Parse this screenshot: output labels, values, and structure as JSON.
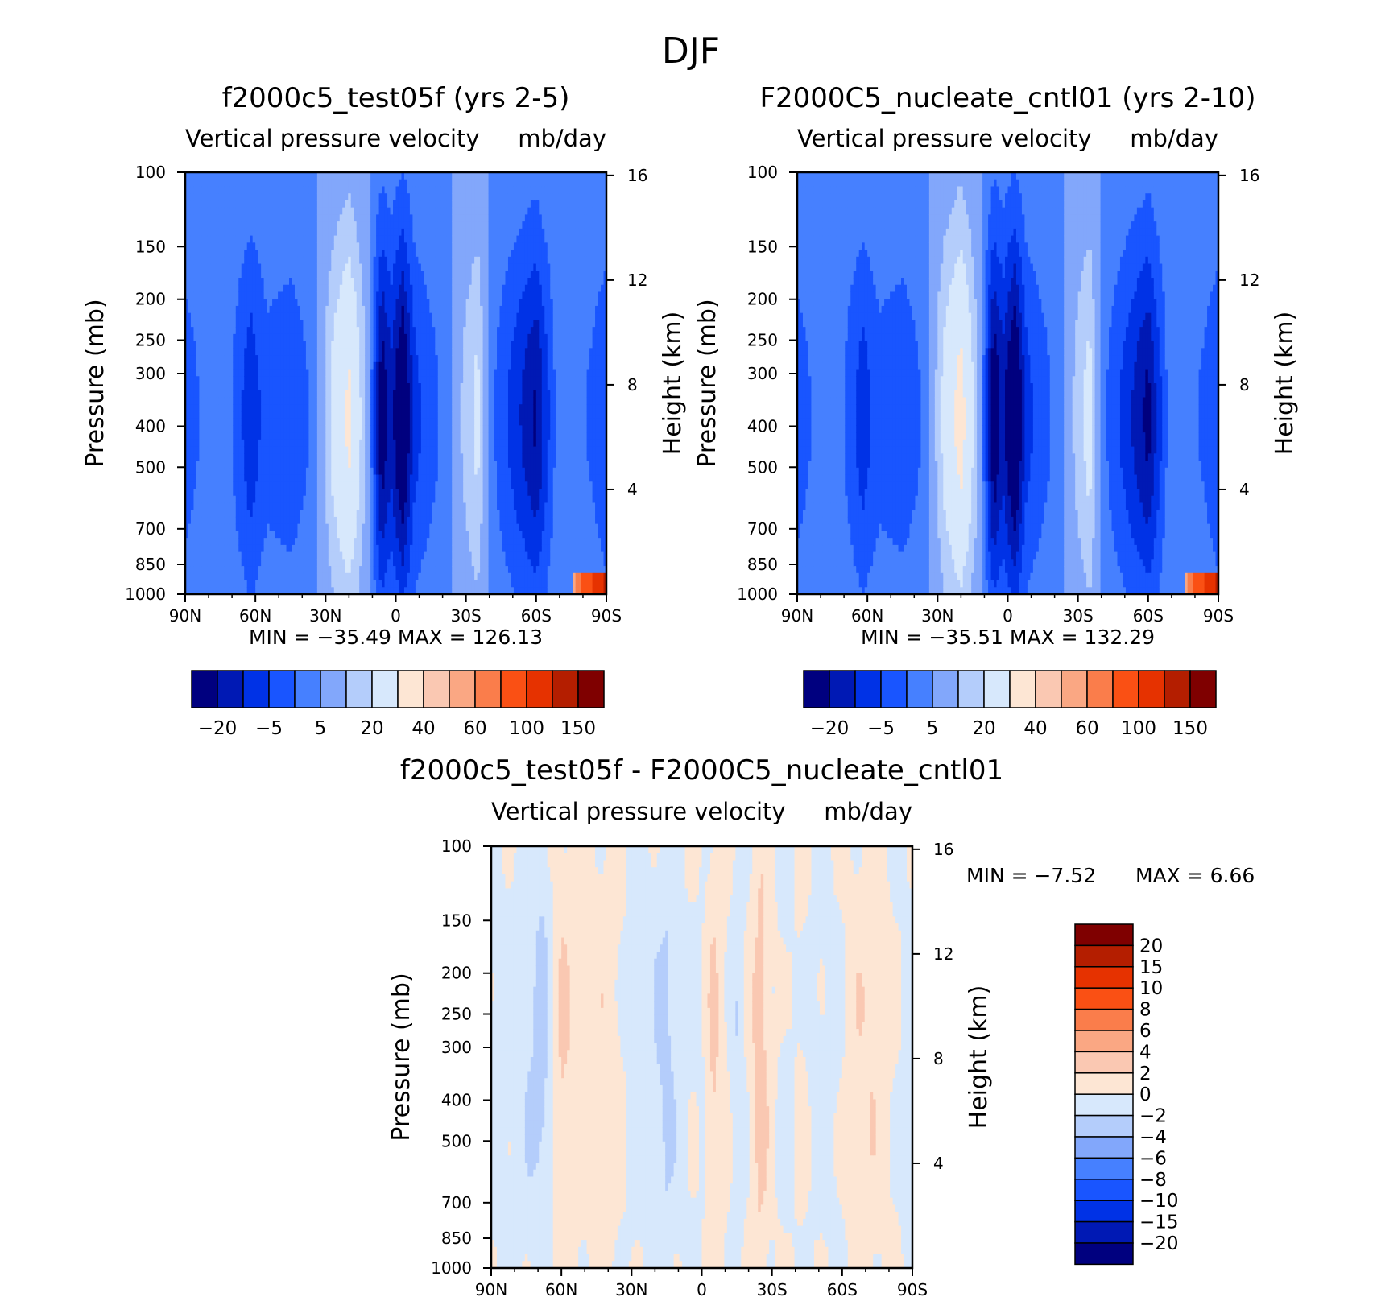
{
  "figure": {
    "title": "DJF"
  },
  "panels": [
    {
      "id": "p1",
      "title": "f2000c5_test05f (yrs 2-5)",
      "left_label": "Vertical pressure velocity",
      "right_label": "mb/day",
      "stats": {
        "min_label": "MIN",
        "min_value": "-35.49",
        "max_label": "MAX",
        "max_value": "126.13"
      }
    },
    {
      "id": "p2",
      "title": "F2000C5_nucleate_cntl01 (yrs 2-10)",
      "left_label": "Vertical pressure velocity",
      "right_label": "mb/day",
      "stats": {
        "min_label": "MIN",
        "min_value": "-35.51",
        "max_label": "MAX",
        "max_value": "132.29"
      }
    },
    {
      "id": "p3",
      "title": "f2000c5_test05f - F2000C5_nucleate_cntl01",
      "left_label": "Vertical pressure velocity",
      "right_label": "mb/day",
      "stats": {
        "min_label": "MIN",
        "min_value": "-7.52",
        "max_label": "MAX",
        "max_value": "6.66"
      }
    }
  ],
  "axes": {
    "ylabel": "Pressure (mb)",
    "y2label": "Height (km)",
    "x_ticks": [
      "90N",
      "60N",
      "30N",
      "0",
      "30S",
      "60S",
      "90S"
    ],
    "y_ticks": [
      "100",
      "150",
      "200",
      "250",
      "300",
      "400",
      "500",
      "700",
      "850",
      "1000"
    ],
    "y2_ticks": [
      "16",
      "12",
      "8",
      "4"
    ]
  },
  "colorbars": {
    "abs_labels": [
      "-20",
      "-5",
      "5",
      "20",
      "40",
      "60",
      "100",
      "150"
    ],
    "abs_colors": [
      "#00007f",
      "#0019b4",
      "#0032e6",
      "#1955ff",
      "#4680ff",
      "#82a7fb",
      "#b4cdfb",
      "#d7e8fc",
      "#fde6d4",
      "#fac8b2",
      "#faa783",
      "#fa7d4b",
      "#fa5014",
      "#e63200",
      "#b41e00",
      "#7f0000"
    ],
    "diff_labels": [
      "20",
      "15",
      "10",
      "8",
      "6",
      "4",
      "2",
      "0",
      "-2",
      "-4",
      "-6",
      "-8",
      "-10",
      "-15",
      "-20"
    ],
    "diff_colors": [
      "#7f0000",
      "#b41e00",
      "#e63200",
      "#fa5014",
      "#fa7d4b",
      "#faa783",
      "#fac8b2",
      "#fde6d4",
      "#d7e8fc",
      "#b4cdfb",
      "#82a7fb",
      "#4680ff",
      "#1955ff",
      "#0032e6",
      "#0019b4",
      "#00007f"
    ]
  },
  "chart_data": [
    {
      "type": "heatmap",
      "title": "f2000c5_test05f (yrs 2-5)",
      "subtitle": "Vertical pressure velocity mb/day",
      "xlabel": "",
      "ylabel": "Pressure (mb)",
      "y2label": "Height (km)",
      "x_ticks": [
        "90N",
        "60N",
        "30N",
        "0",
        "30S",
        "60S",
        "90S"
      ],
      "y_ticks": [
        100,
        150,
        200,
        250,
        300,
        400,
        500,
        700,
        850,
        1000
      ],
      "y2_ticks": [
        16,
        12,
        8,
        4
      ],
      "y_scale": "log",
      "ylim": [
        1000,
        100
      ],
      "min": -35.49,
      "max": 126.13,
      "colorbar_levels": [
        -20,
        -5,
        5,
        20,
        40,
        60,
        100,
        150
      ],
      "profile": {
        "lat": [
          90,
          80,
          70,
          62,
          55,
          45,
          35,
          27,
          20,
          12,
          6,
          2,
          -3,
          -8,
          -15,
          -22,
          -28,
          -35,
          -40,
          -50,
          -60,
          -68,
          -76,
          -84,
          -90
        ],
        "value": [
          -8,
          -3,
          -5,
          -14,
          -7,
          -9,
          -4,
          12,
          22,
          3,
          -25,
          -17,
          -29,
          -12,
          -7,
          -3,
          5,
          12,
          -3,
          -12,
          -21,
          -5,
          -3,
          -6,
          -10
        ]
      }
    },
    {
      "type": "heatmap",
      "title": "F2000C5_nucleate_cntl01 (yrs 2-10)",
      "subtitle": "Vertical pressure velocity mb/day",
      "xlabel": "",
      "ylabel": "Pressure (mb)",
      "y2label": "Height (km)",
      "x_ticks": [
        "90N",
        "60N",
        "30N",
        "0",
        "30S",
        "60S",
        "90S"
      ],
      "y_ticks": [
        100,
        150,
        200,
        250,
        300,
        400,
        500,
        700,
        850,
        1000
      ],
      "y2_ticks": [
        16,
        12,
        8,
        4
      ],
      "y_scale": "log",
      "ylim": [
        1000,
        100
      ],
      "min": -35.51,
      "max": 132.29,
      "colorbar_levels": [
        -20,
        -5,
        5,
        20,
        40,
        60,
        100,
        150
      ],
      "profile": {
        "lat": [
          90,
          80,
          70,
          62,
          55,
          45,
          35,
          27,
          20,
          12,
          6,
          2,
          -3,
          -8,
          -15,
          -22,
          -28,
          -35,
          -40,
          -50,
          -60,
          -68,
          -76,
          -84,
          -90
        ],
        "value": [
          -8,
          -3,
          -5,
          -13,
          -7,
          -9,
          -4,
          13,
          24,
          3,
          -26,
          -18,
          -30,
          -12,
          -7,
          -3,
          5,
          13,
          -3,
          -12,
          -22,
          -5,
          -3,
          -6,
          -10
        ]
      }
    },
    {
      "type": "heatmap",
      "title": "f2000c5_test05f - F2000C5_nucleate_cntl01",
      "subtitle": "Vertical pressure velocity mb/day",
      "xlabel": "",
      "ylabel": "Pressure (mb)",
      "y2label": "Height (km)",
      "x_ticks": [
        "90N",
        "60N",
        "30N",
        "0",
        "30S",
        "60S",
        "90S"
      ],
      "y_ticks": [
        100,
        150,
        200,
        250,
        300,
        400,
        500,
        700,
        850,
        1000
      ],
      "y2_ticks": [
        16,
        12,
        8,
        4
      ],
      "y_scale": "log",
      "ylim": [
        1000,
        100
      ],
      "min": -7.52,
      "max": 6.66,
      "colorbar_levels": [
        -20,
        -15,
        -10,
        -8,
        -6,
        -4,
        -2,
        0,
        2,
        4,
        6,
        8,
        10,
        15,
        20
      ],
      "profile": {
        "lat": [
          90,
          78,
          68,
          60,
          50,
          40,
          30,
          22,
          15,
          8,
          0,
          -5,
          -10,
          -15,
          -20,
          -25,
          -30,
          -36,
          -42,
          -50,
          -58,
          -66,
          -72,
          -80,
          -90
        ],
        "value": [
          -0.6,
          -0.8,
          -2.5,
          1.8,
          0.6,
          1.2,
          -0.6,
          -0.9,
          -2.2,
          -0.4,
          -0.3,
          2.0,
          0.5,
          -1.5,
          0.4,
          2.8,
          0.3,
          -0.5,
          0.3,
          -0.6,
          -0.4,
          1.1,
          1.5,
          0.4,
          -0.8
        ]
      }
    }
  ]
}
